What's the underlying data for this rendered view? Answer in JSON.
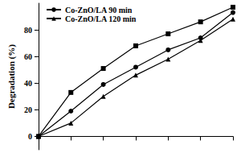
{
  "chart_data": {
    "type": "line",
    "categories": [
      null,
      null,
      null,
      null,
      null,
      null,
      null
    ],
    "series": [
      {
        "values": [
          0,
          33,
          51,
          68,
          77,
          86,
          97
        ],
        "color": "#000000",
        "marker": "square"
      },
      {
        "name": "Co-ZnO/LA 90 min",
        "values": [
          0,
          19,
          39,
          52,
          65,
          74,
          93
        ],
        "color": "#000000",
        "marker": "circle"
      },
      {
        "name": "Co-ZnO/LA 120 min",
        "values": [
          0,
          10,
          30,
          46,
          58,
          72,
          88
        ],
        "color": "#000000",
        "marker": "triangle"
      }
    ],
    "y_label": "Degradation (%)",
    "ylim": [
      -10,
      100
    ],
    "yticks": [
      0,
      20,
      40,
      60,
      80
    ],
    "legend": "upper left",
    "tick_labels": "y",
    "grid": false
  }
}
